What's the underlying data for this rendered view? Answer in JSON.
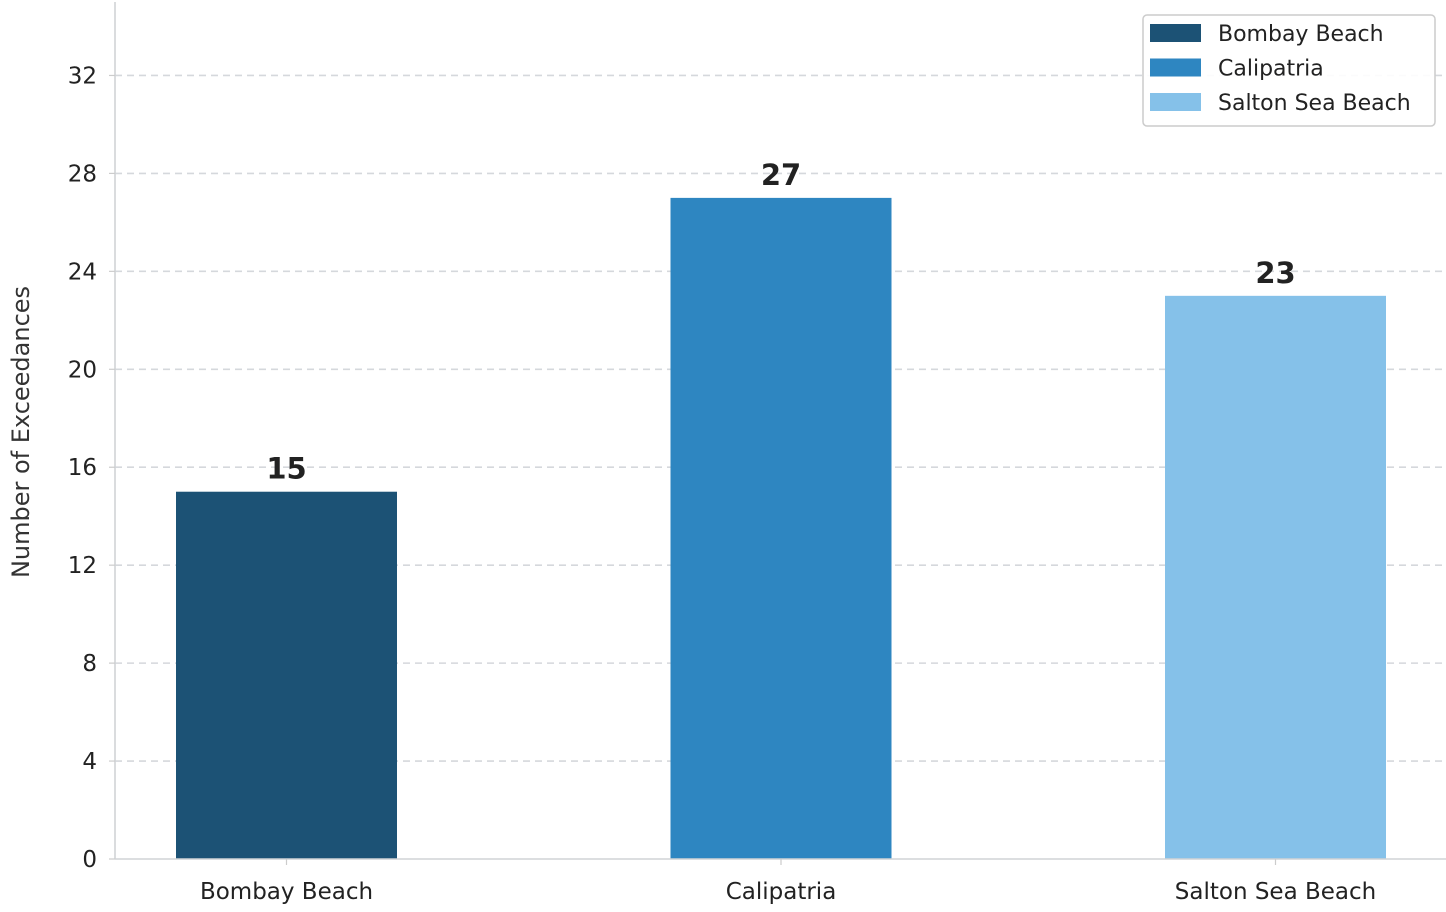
{
  "chart_data": {
    "type": "bar",
    "categories": [
      "Bombay Beach",
      "Calipatria",
      "Salton Sea Beach"
    ],
    "values": [
      15,
      27,
      23
    ],
    "colors": [
      "#1c5275",
      "#2e86c1",
      "#85c1e9"
    ],
    "title": "",
    "xlabel": "",
    "ylabel": "Number of Exceedances",
    "ylim": [
      0,
      35
    ],
    "yticks": [
      0,
      4,
      8,
      12,
      16,
      20,
      24,
      28,
      32
    ],
    "grid": "horizontal-dashed",
    "legend": {
      "placement": "top-right",
      "entries": [
        "Bombay Beach",
        "Calipatria",
        "Salton Sea Beach"
      ]
    },
    "data_labels": true
  }
}
